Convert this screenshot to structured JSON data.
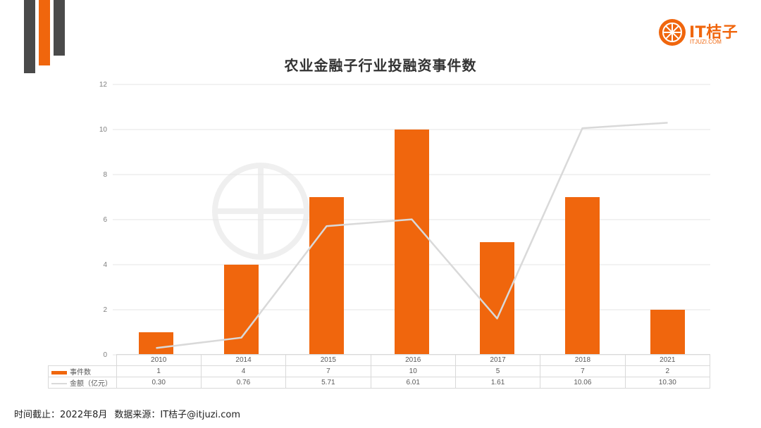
{
  "brand": {
    "name": "IT桔子",
    "domain": "ITJUZI.COM",
    "accent": "#f0660d",
    "dark": "#4a4a4a"
  },
  "title": "农业金融子行业投融资事件数",
  "footer": {
    "cutoff": "时间截止：2022年8月",
    "source": "数据来源：IT桔子@itjuzi.com"
  },
  "chart_data": {
    "type": "bar",
    "title": "农业金融子行业投融资事件数",
    "categories": [
      "2010",
      "2014",
      "2015",
      "2016",
      "2017",
      "2018",
      "2021"
    ],
    "ylim": [
      0,
      12
    ],
    "yticks": [
      0,
      2,
      4,
      6,
      8,
      10,
      12
    ],
    "grid": true,
    "series": [
      {
        "name": "事件数",
        "type": "bar",
        "color": "#f0660d",
        "values": [
          1,
          4,
          7,
          10,
          5,
          7,
          2
        ]
      },
      {
        "name": "金额（亿元）",
        "type": "line",
        "color": "#d9d9d9",
        "values": [
          0.3,
          0.76,
          5.71,
          6.01,
          1.61,
          10.06,
          10.3
        ]
      }
    ]
  },
  "table": {
    "rows": [
      {
        "label": "事件数",
        "cells": [
          "1",
          "4",
          "7",
          "10",
          "5",
          "7",
          "2"
        ]
      },
      {
        "label": "金额（亿元）",
        "cells": [
          "0.30",
          "0.76",
          "5.71",
          "6.01",
          "1.61",
          "10.06",
          "10.30"
        ]
      }
    ]
  }
}
